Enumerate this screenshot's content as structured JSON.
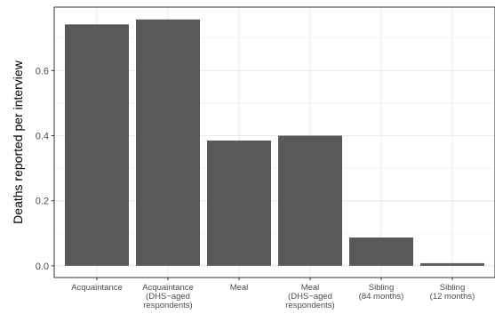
{
  "chart_data": {
    "type": "bar",
    "title": "",
    "xlabel": "",
    "ylabel": "Deaths reported per interview",
    "categories": [
      [
        "Acquaintance"
      ],
      [
        "Acquaintance",
        "(DHS−aged",
        "respondents)"
      ],
      [
        "Meal"
      ],
      [
        "Meal",
        "(DHS−aged",
        "respondents)"
      ],
      [
        "Sibling",
        "(84 months)"
      ],
      [
        "Sibling",
        "(12 months)"
      ]
    ],
    "values": [
      0.742,
      0.757,
      0.385,
      0.4,
      0.087,
      0.008
    ],
    "ylim": [
      -0.036,
      0.795
    ],
    "yticks": [
      0.0,
      0.2,
      0.4,
      0.6
    ],
    "ytick_labels": [
      "0.0",
      "0.2",
      "0.4",
      "0.6"
    ],
    "grid": true,
    "legend": "none",
    "bar_color": "#595959",
    "grid_color": "#ebebeb",
    "panel_border_color": "#333333"
  }
}
